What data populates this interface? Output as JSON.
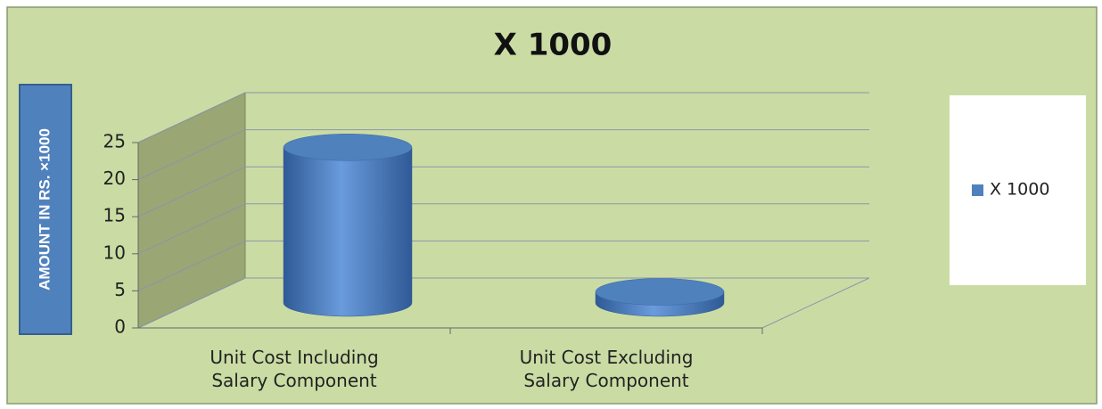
{
  "chart_data": {
    "type": "bar3d_cylinder",
    "title": "X 1000",
    "y_axis_label": "AMOUNT IN RS. ×1000",
    "categories": [
      "Unit Cost Including\nSalary Component",
      "Unit Cost Excluding\nSalary Component"
    ],
    "series": [
      {
        "name": "X 1000",
        "color": "#4f81bd",
        "values": [
          21,
          1.5
        ]
      }
    ],
    "ylim": [
      0,
      25
    ],
    "yticks": [
      0,
      5,
      10,
      15,
      20,
      25
    ],
    "grid": true,
    "legend": "right"
  }
}
